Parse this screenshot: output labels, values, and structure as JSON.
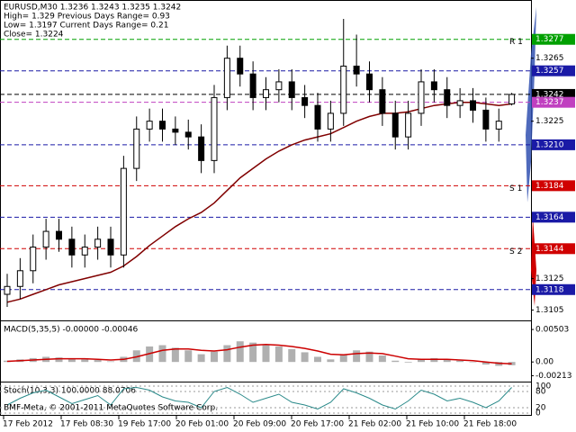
{
  "chart_data": {
    "type": "candlestick",
    "header": [
      "EURUSD,M30  1.3236 1.3243 1.3235 1.3242",
      "High= 1.329   Previous Days Range= 0.93",
      "Low= 1.3197   Current Days Range= 0.21",
      "Close= 1.3224"
    ],
    "ylim": [
      1.3099,
      1.3302
    ],
    "yticks": [
      1.3265,
      1.3225,
      1.3125,
      1.3105
    ],
    "open": [
      1.3115,
      1.312,
      1.313,
      1.3145,
      1.3155,
      1.315,
      1.314,
      1.3145,
      1.315,
      1.314,
      1.3195,
      1.322,
      1.3225,
      1.322,
      1.3218,
      1.3215,
      1.32,
      1.324,
      1.3265,
      1.3255,
      1.324,
      1.3245,
      1.325,
      1.324,
      1.3235,
      1.322,
      1.323,
      1.326,
      1.3255,
      1.3245,
      1.323,
      1.3215,
      1.323,
      1.325,
      1.3245,
      1.3235,
      1.3238,
      1.3232,
      1.322,
      1.3236
    ],
    "high": [
      1.3128,
      1.3138,
      1.3153,
      1.3163,
      1.3163,
      1.3158,
      1.3153,
      1.3158,
      1.3158,
      1.3203,
      1.3228,
      1.3233,
      1.3233,
      1.3228,
      1.3226,
      1.3223,
      1.3248,
      1.3273,
      1.3273,
      1.3263,
      1.3253,
      1.3258,
      1.3258,
      1.3248,
      1.3243,
      1.3238,
      1.329,
      1.328,
      1.3263,
      1.3253,
      1.3238,
      1.3238,
      1.3258,
      1.3258,
      1.3253,
      1.3246,
      1.3246,
      1.324,
      1.3233,
      1.3243
    ],
    "low": [
      1.3107,
      1.3112,
      1.3122,
      1.3137,
      1.3142,
      1.3132,
      1.3132,
      1.3137,
      1.3132,
      1.3132,
      1.3187,
      1.3212,
      1.3212,
      1.321,
      1.3207,
      1.3192,
      1.3192,
      1.3232,
      1.3247,
      1.3232,
      1.3232,
      1.3237,
      1.3232,
      1.3227,
      1.3212,
      1.3212,
      1.3222,
      1.3247,
      1.3237,
      1.3222,
      1.3207,
      1.3207,
      1.3222,
      1.3237,
      1.3227,
      1.3227,
      1.3224,
      1.3212,
      1.3212,
      1.3235
    ],
    "close": [
      1.312,
      1.313,
      1.3145,
      1.3155,
      1.315,
      1.314,
      1.3145,
      1.315,
      1.314,
      1.3195,
      1.322,
      1.3225,
      1.322,
      1.3218,
      1.3215,
      1.32,
      1.324,
      1.3265,
      1.3255,
      1.324,
      1.3245,
      1.325,
      1.324,
      1.3235,
      1.322,
      1.323,
      1.326,
      1.3255,
      1.3245,
      1.323,
      1.3215,
      1.323,
      1.325,
      1.3245,
      1.3235,
      1.3238,
      1.3232,
      1.322,
      1.3225,
      1.3242
    ],
    "ma": {
      "color": "#800000",
      "values": [
        1.311,
        1.3112,
        1.3115,
        1.3118,
        1.3121,
        1.3123,
        1.3125,
        1.3127,
        1.3129,
        1.3133,
        1.3139,
        1.3146,
        1.3152,
        1.3158,
        1.3163,
        1.3167,
        1.3173,
        1.3181,
        1.3189,
        1.3195,
        1.3201,
        1.3206,
        1.321,
        1.3213,
        1.3215,
        1.3217,
        1.3221,
        1.3225,
        1.3228,
        1.323,
        1.323,
        1.3231,
        1.3233,
        1.3235,
        1.3236,
        1.3237,
        1.3237,
        1.3236,
        1.3235,
        1.3236
      ]
    },
    "levels": [
      {
        "value": 1.3277,
        "label": "1.3277",
        "color": "#00a000"
      },
      {
        "value": 1.3257,
        "label": "1.3257",
        "color": "#1a1aa6"
      },
      {
        "value": 1.3242,
        "label": "1.3242",
        "color": "#000000"
      },
      {
        "value": 1.3237,
        "label": "1.3237",
        "color": "#c040c0"
      },
      {
        "value": 1.321,
        "label": "1.3210",
        "color": "#1a1aa6"
      },
      {
        "value": 1.3184,
        "label": "1.3184",
        "color": "#d00000"
      },
      {
        "value": 1.3164,
        "label": "1.3164",
        "color": "#1a1aa6"
      },
      {
        "value": 1.3144,
        "label": "1.3144",
        "color": "#d00000"
      },
      {
        "value": 1.3118,
        "label": "1.3118",
        "color": "#1a1aa6"
      }
    ],
    "annotations": [
      {
        "text": "R 1",
        "value": 1.3277
      },
      {
        "text": "S 1",
        "value": 1.3184
      },
      {
        "text": "S 2",
        "value": 1.3144
      }
    ],
    "macd": {
      "title": "MACD(5,35,5) -0.00000 -0.00046",
      "ylim": [
        -0.0029,
        0.0063
      ],
      "yticks": [
        0.00503,
        {
          "value": 0,
          "label": "0.00"
        },
        -0.00213
      ],
      "histogram": {
        "color": "#b0b0b0",
        "values": [
          0.0002,
          0.0004,
          0.0006,
          0.0008,
          0.0007,
          0.0005,
          0.0004,
          0.0003,
          0.0001,
          0.0008,
          0.0018,
          0.0024,
          0.0026,
          0.0022,
          0.0018,
          0.0012,
          0.0016,
          0.0026,
          0.0032,
          0.003,
          0.0026,
          0.0024,
          0.002,
          0.0015,
          0.0008,
          0.0004,
          0.0012,
          0.0018,
          0.0016,
          0.001,
          0.0002,
          -0.0001,
          0.0004,
          0.0006,
          0.0004,
          0.0002,
          0.0,
          -0.0004,
          -0.0006,
          -0.0005
        ]
      },
      "signal": {
        "color": "#cc0000",
        "values": [
          0.0001,
          0.0002,
          0.0003,
          0.0004,
          0.0005,
          0.0005,
          0.0005,
          0.0004,
          0.0003,
          0.0004,
          0.0008,
          0.0013,
          0.0018,
          0.002,
          0.002,
          0.0018,
          0.0017,
          0.0019,
          0.0023,
          0.0026,
          0.0027,
          0.0026,
          0.0024,
          0.0021,
          0.0017,
          0.0012,
          0.0011,
          0.0013,
          0.0014,
          0.0013,
          0.0009,
          0.0005,
          0.0004,
          0.0004,
          0.0004,
          0.0003,
          0.0002,
          0.0,
          -0.0002,
          -0.0003
        ]
      }
    },
    "stoch": {
      "title": "Stoch(10,3,3) 100.0000 88.0706",
      "ylim": [
        0,
        100
      ],
      "yticks": [
        100,
        80,
        20,
        0
      ],
      "color": "#2a8a8a",
      "values": [
        30,
        55,
        75,
        85,
        60,
        35,
        50,
        65,
        30,
        90,
        95,
        85,
        60,
        45,
        40,
        20,
        80,
        95,
        70,
        40,
        55,
        70,
        40,
        30,
        15,
        40,
        90,
        75,
        55,
        30,
        15,
        45,
        85,
        70,
        45,
        55,
        40,
        20,
        45,
        95
      ]
    },
    "copyright": "BMF-Meta, © 2001-2011 MetaQuotes Software Corp.",
    "time_labels": [
      "17 Feb 2012",
      "17 Feb 08:30",
      "19 Feb 17:00",
      "20 Feb 01:00",
      "20 Feb 09:00",
      "20 Feb 17:00",
      "21 Feb 02:00",
      "21 Feb 10:00",
      "21 Feb 18:00"
    ]
  }
}
